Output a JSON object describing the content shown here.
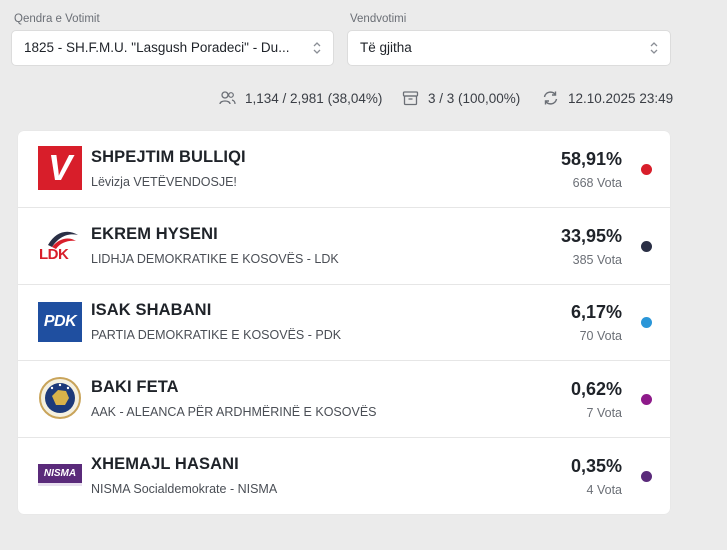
{
  "filters": {
    "center_label": "Qendra e Votimit",
    "center_value": "1825 - SH.F.M.U. \"Lasgush Poradeci\" - Du...",
    "station_label": "Vendvotimi",
    "station_value": "Të gjitha"
  },
  "stats": {
    "turnout": "1,134 / 2,981 (38,04%)",
    "boxes": "3 / 3 (100,00%)",
    "updated": "12.10.2025 23:49"
  },
  "results": [
    {
      "name": "SHPEJTIM BULLIQI",
      "party": "Lëvizja VETËVENDOSJE!",
      "percent": "58,91%",
      "votes": "668 Vota",
      "color": "#d81e2a",
      "logo": "vetevendosje-logo",
      "logo_text": "V"
    },
    {
      "name": "EKREM HYSENI",
      "party": "LIDHJA DEMOKRATIKE E KOSOVËS - LDK",
      "percent": "33,95%",
      "votes": "385 Vota",
      "color": "#2a2f45",
      "logo": "ldk-logo",
      "logo_text": "LDK"
    },
    {
      "name": "ISAK SHABANI",
      "party": "PARTIA DEMOKRATIKE E KOSOVËS - PDK",
      "percent": "6,17%",
      "votes": "70 Vota",
      "color": "#2a96d8",
      "logo": "pdk-logo",
      "logo_text": "PDK"
    },
    {
      "name": "BAKI FETA",
      "party": "AAK - ALEANCA PËR ARDHMËRINË E KOSOVËS",
      "percent": "0,62%",
      "votes": "7 Vota",
      "color": "#8e1a8a",
      "logo": "aak-logo",
      "logo_text": ""
    },
    {
      "name": "XHEMAJL HASANI",
      "party": "NISMA Socialdemokrate - NISMA",
      "percent": "0,35%",
      "votes": "4 Vota",
      "color": "#5a2a7a",
      "logo": "nisma-logo",
      "logo_text": "NISMA"
    }
  ]
}
